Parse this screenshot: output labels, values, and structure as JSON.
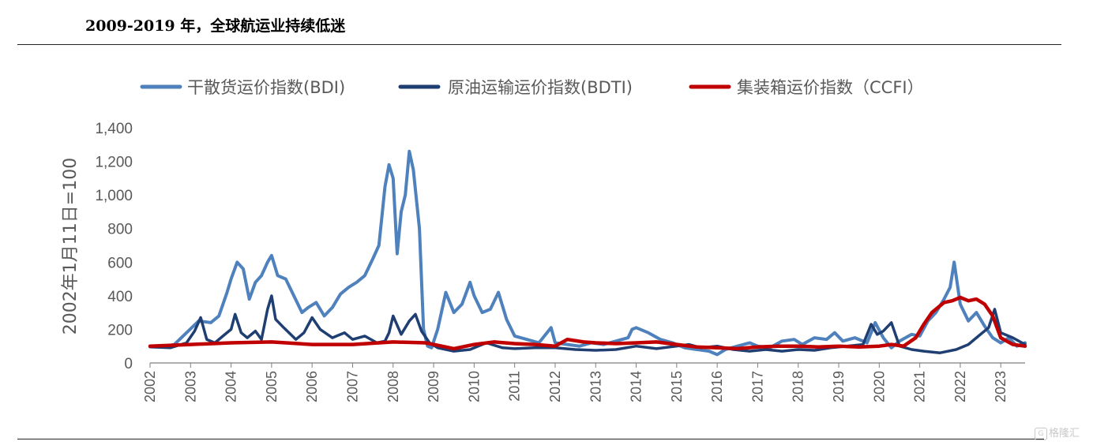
{
  "header": {
    "title": "2009-2019 年，全球航运业持续低迷"
  },
  "watermark": {
    "text": "格隆汇"
  },
  "colors": {
    "bdi": "#4f81bd",
    "bdti": "#1f3f73",
    "ccfi": "#c00000",
    "axis": "#7f7f7f",
    "text": "#595959"
  },
  "chart_data": {
    "type": "line",
    "ylabel": "2002年1月11日=100",
    "ylim": [
      0,
      1400
    ],
    "yticks": [
      0,
      200,
      400,
      600,
      800,
      1000,
      1200,
      1400
    ],
    "ytick_labels": [
      "0",
      "200",
      "400",
      "600",
      "800",
      "1,000",
      "1,200",
      "1,400"
    ],
    "xlim": [
      2002.0,
      2023.6
    ],
    "xticks": [
      2002,
      2003,
      2004,
      2005,
      2006,
      2007,
      2008,
      2009,
      2010,
      2011,
      2012,
      2013,
      2014,
      2015,
      2016,
      2017,
      2018,
      2019,
      2020,
      2021,
      2022,
      2023
    ],
    "xtick_labels": [
      "2002",
      "2003",
      "2004",
      "2005",
      "2006",
      "2007",
      "2008",
      "2009",
      "2010",
      "2011",
      "2012",
      "2013",
      "2014",
      "2015",
      "2016",
      "2017",
      "2018",
      "2019",
      "2020",
      "2021",
      "2022",
      "2023"
    ],
    "series": [
      {
        "name": "干散货运价指数(BDI)",
        "key": "bdi",
        "x": [
          2002.0,
          2002.3,
          2002.6,
          2002.9,
          2003.2,
          2003.5,
          2003.7,
          2003.9,
          2004.0,
          2004.15,
          2004.3,
          2004.45,
          2004.6,
          2004.75,
          2004.9,
          2005.0,
          2005.15,
          2005.35,
          2005.55,
          2005.75,
          2005.9,
          2006.1,
          2006.3,
          2006.5,
          2006.7,
          2006.9,
          2007.1,
          2007.3,
          2007.5,
          2007.65,
          2007.8,
          2007.9,
          2008.0,
          2008.1,
          2008.2,
          2008.3,
          2008.4,
          2008.5,
          2008.65,
          2008.75,
          2008.85,
          2008.95,
          2009.1,
          2009.3,
          2009.5,
          2009.7,
          2009.9,
          2010.0,
          2010.2,
          2010.4,
          2010.6,
          2010.8,
          2011.0,
          2011.3,
          2011.6,
          2011.9,
          2012.0,
          2012.3,
          2012.6,
          2012.9,
          2013.2,
          2013.5,
          2013.8,
          2013.9,
          2014.0,
          2014.3,
          2014.6,
          2014.9,
          2015.2,
          2015.5,
          2015.8,
          2016.0,
          2016.2,
          2016.5,
          2016.8,
          2017.0,
          2017.3,
          2017.6,
          2017.9,
          2018.1,
          2018.4,
          2018.7,
          2018.9,
          2019.1,
          2019.4,
          2019.7,
          2019.9,
          2020.1,
          2020.3,
          2020.5,
          2020.8,
          2021.0,
          2021.2,
          2021.4,
          2021.6,
          2021.75,
          2021.85,
          2022.0,
          2022.2,
          2022.4,
          2022.6,
          2022.8,
          2023.0,
          2023.2,
          2023.4,
          2023.6
        ],
        "values": [
          100,
          95,
          110,
          180,
          250,
          240,
          280,
          420,
          500,
          600,
          560,
          380,
          480,
          520,
          600,
          640,
          520,
          500,
          400,
          300,
          330,
          360,
          280,
          330,
          410,
          450,
          480,
          520,
          620,
          700,
          1050,
          1180,
          1100,
          650,
          900,
          1000,
          1260,
          1150,
          800,
          200,
          100,
          90,
          200,
          420,
          300,
          350,
          480,
          400,
          300,
          320,
          420,
          260,
          160,
          140,
          120,
          210,
          120,
          110,
          100,
          120,
          110,
          130,
          150,
          200,
          210,
          180,
          140,
          120,
          90,
          80,
          70,
          50,
          80,
          100,
          120,
          100,
          90,
          130,
          140,
          110,
          150,
          140,
          180,
          130,
          150,
          120,
          240,
          150,
          90,
          130,
          170,
          160,
          250,
          300,
          380,
          450,
          600,
          350,
          250,
          300,
          220,
          150,
          120,
          150,
          100,
          120
        ]
      },
      {
        "name": "原油运输运价指数(BDTI)",
        "key": "bdti",
        "x": [
          2002.0,
          2002.5,
          2002.9,
          2003.1,
          2003.25,
          2003.4,
          2003.6,
          2003.8,
          2004.0,
          2004.1,
          2004.25,
          2004.4,
          2004.6,
          2004.75,
          2004.9,
          2005.0,
          2005.1,
          2005.3,
          2005.6,
          2005.8,
          2006.0,
          2006.2,
          2006.5,
          2006.8,
          2007.0,
          2007.3,
          2007.6,
          2007.8,
          2007.9,
          2008.0,
          2008.2,
          2008.4,
          2008.55,
          2008.7,
          2008.9,
          2009.1,
          2009.5,
          2009.9,
          2010.3,
          2010.7,
          2011.0,
          2011.5,
          2012.0,
          2012.5,
          2013.0,
          2013.5,
          2014.0,
          2014.5,
          2015.0,
          2015.3,
          2015.6,
          2016.0,
          2016.4,
          2016.8,
          2017.2,
          2017.6,
          2018.0,
          2018.4,
          2018.8,
          2019.2,
          2019.6,
          2019.8,
          2019.95,
          2020.1,
          2020.3,
          2020.5,
          2020.8,
          2021.1,
          2021.5,
          2021.9,
          2022.2,
          2022.45,
          2022.7,
          2022.85,
          2023.0,
          2023.3,
          2023.6
        ],
        "values": [
          95,
          90,
          120,
          190,
          270,
          140,
          120,
          160,
          200,
          290,
          180,
          150,
          190,
          140,
          320,
          400,
          260,
          210,
          140,
          180,
          270,
          200,
          150,
          180,
          140,
          160,
          120,
          130,
          180,
          280,
          170,
          250,
          290,
          190,
          120,
          90,
          70,
          80,
          120,
          90,
          85,
          90,
          90,
          80,
          75,
          80,
          100,
          85,
          100,
          110,
          90,
          100,
          80,
          70,
          80,
          70,
          80,
          75,
          90,
          100,
          110,
          230,
          170,
          190,
          240,
          100,
          80,
          70,
          60,
          80,
          110,
          160,
          210,
          320,
          180,
          150,
          110
        ]
      },
      {
        "name": "集装箱运价指数（CCFI）",
        "key": "ccfi",
        "x": [
          2002.0,
          2003.0,
          2004.0,
          2005.0,
          2006.0,
          2007.0,
          2008.0,
          2008.8,
          2009.2,
          2009.5,
          2010.0,
          2010.5,
          2011.0,
          2011.5,
          2012.0,
          2012.3,
          2012.7,
          2013.0,
          2013.5,
          2014.0,
          2014.5,
          2015.0,
          2015.5,
          2016.0,
          2016.5,
          2017.0,
          2017.5,
          2018.0,
          2018.5,
          2019.0,
          2019.5,
          2020.0,
          2020.3,
          2020.6,
          2020.9,
          2021.1,
          2021.3,
          2021.6,
          2021.8,
          2022.0,
          2022.2,
          2022.4,
          2022.6,
          2022.8,
          2023.0,
          2023.3,
          2023.6
        ],
        "values": [
          100,
          110,
          120,
          125,
          110,
          110,
          125,
          120,
          100,
          85,
          110,
          125,
          115,
          110,
          100,
          140,
          125,
          120,
          115,
          120,
          125,
          110,
          95,
          90,
          85,
          95,
          100,
          100,
          95,
          100,
          95,
          100,
          110,
          100,
          150,
          230,
          300,
          360,
          370,
          390,
          370,
          380,
          350,
          280,
          150,
          110,
          100
        ]
      }
    ]
  }
}
